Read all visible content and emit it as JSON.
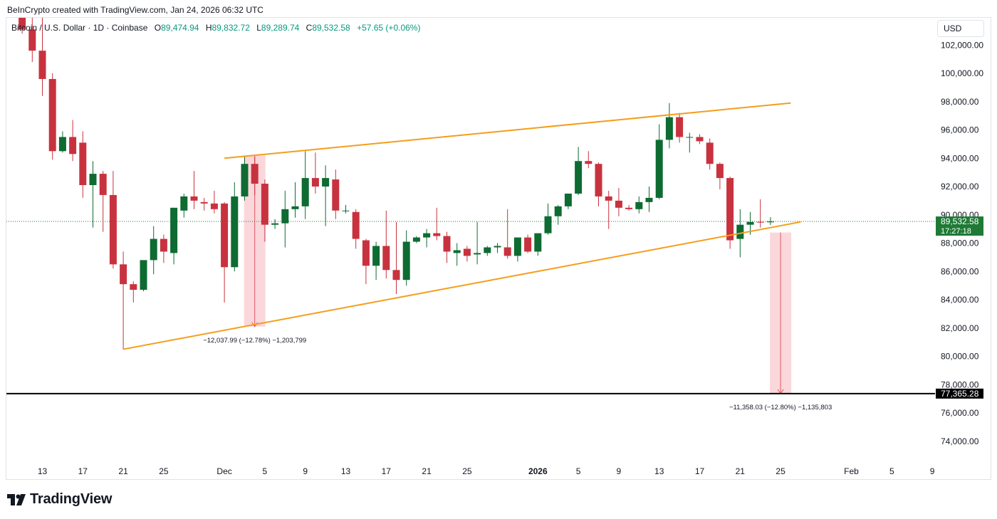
{
  "header": {
    "credit": "BeInCrypto created with TradingView.com, Jan 24, 2026 06:32 UTC"
  },
  "legend": {
    "symbol": "Bitcoin / U.S. Dollar · 1D · Coinbase",
    "open_label": "O",
    "open": "89,474.94",
    "high_label": "H",
    "high": "89,832.72",
    "low_label": "L",
    "low": "89,289.74",
    "close_label": "C",
    "close": "89,532.58",
    "change": "+57.65 (+0.06%)"
  },
  "currency_button": "USD",
  "logo_text": "TradingView",
  "colors": {
    "up": "#0e6b32",
    "down": "#c8323f",
    "trendline": "#f59d1b",
    "measure_fill": "#f8c9cf",
    "measure_line": "#e25563",
    "support_line": "#000000",
    "price_tag": "#1f7a36"
  },
  "chart_data": {
    "type": "candlestick",
    "title": "",
    "xlabel": "",
    "ylabel": "",
    "ylim": [
      72500,
      104500
    ],
    "grid": false,
    "y_ticks": [
      "102,000.00",
      "100,000.00",
      "98,000.00",
      "96,000.00",
      "94,000.00",
      "92,000.00",
      "90,000.00",
      "88,000.00",
      "86,000.00",
      "84,000.00",
      "82,000.00",
      "80,000.00",
      "78,000.00",
      "76,000.00",
      "74,000.00"
    ],
    "y_tick_values": [
      102000,
      100000,
      98000,
      96000,
      94000,
      92000,
      90000,
      88000,
      86000,
      84000,
      82000,
      80000,
      78000,
      76000,
      74000
    ],
    "x_ticks": [
      {
        "label": "13",
        "date": "2025-11-13"
      },
      {
        "label": "17",
        "date": "2025-11-17"
      },
      {
        "label": "21",
        "date": "2025-11-21"
      },
      {
        "label": "25",
        "date": "2025-11-25"
      },
      {
        "label": "Dec",
        "date": "2025-12-01"
      },
      {
        "label": "5",
        "date": "2025-12-05"
      },
      {
        "label": "9",
        "date": "2025-12-09"
      },
      {
        "label": "13",
        "date": "2025-12-13"
      },
      {
        "label": "17",
        "date": "2025-12-17"
      },
      {
        "label": "21",
        "date": "2025-12-21"
      },
      {
        "label": "25",
        "date": "2025-12-25"
      },
      {
        "label": "2026",
        "date": "2026-01-01",
        "bold": true
      },
      {
        "label": "5",
        "date": "2026-01-05"
      },
      {
        "label": "9",
        "date": "2026-01-09"
      },
      {
        "label": "13",
        "date": "2026-01-13"
      },
      {
        "label": "17",
        "date": "2026-01-17"
      },
      {
        "label": "21",
        "date": "2026-01-21"
      },
      {
        "label": "25",
        "date": "2026-01-25"
      },
      {
        "label": "Feb",
        "date": "2026-02-01"
      },
      {
        "label": "5",
        "date": "2026-02-05"
      },
      {
        "label": "9",
        "date": "2026-02-09"
      }
    ],
    "candles": [
      {
        "date": "2025-11-11",
        "o": 105000,
        "h": 105500,
        "l": 102800,
        "c": 103100
      },
      {
        "date": "2025-11-12",
        "o": 103100,
        "h": 105000,
        "l": 100800,
        "c": 101600
      },
      {
        "date": "2025-11-13",
        "o": 101600,
        "h": 104300,
        "l": 98400,
        "c": 99600
      },
      {
        "date": "2025-11-14",
        "o": 99600,
        "h": 100000,
        "l": 93900,
        "c": 94500
      },
      {
        "date": "2025-11-15",
        "o": 94500,
        "h": 95900,
        "l": 94400,
        "c": 95500
      },
      {
        "date": "2025-11-16",
        "o": 95500,
        "h": 96700,
        "l": 93800,
        "c": 94300
      },
      {
        "date": "2025-11-17",
        "o": 95100,
        "h": 95900,
        "l": 91200,
        "c": 92100
      },
      {
        "date": "2025-11-18",
        "o": 92100,
        "h": 93800,
        "l": 89100,
        "c": 92900
      },
      {
        "date": "2025-11-19",
        "o": 92900,
        "h": 93100,
        "l": 88800,
        "c": 91400
      },
      {
        "date": "2025-11-20",
        "o": 91400,
        "h": 93100,
        "l": 86200,
        "c": 86500
      },
      {
        "date": "2025-11-21",
        "o": 86500,
        "h": 87400,
        "l": 80500,
        "c": 85100
      },
      {
        "date": "2025-11-22",
        "o": 85100,
        "h": 85300,
        "l": 83800,
        "c": 84700
      },
      {
        "date": "2025-11-23",
        "o": 84700,
        "h": 86600,
        "l": 84600,
        "c": 86800
      },
      {
        "date": "2025-11-24",
        "o": 86800,
        "h": 89200,
        "l": 85800,
        "c": 88300
      },
      {
        "date": "2025-11-25",
        "o": 88300,
        "h": 88600,
        "l": 86600,
        "c": 87400
      },
      {
        "date": "2025-11-26",
        "o": 87300,
        "h": 90500,
        "l": 86500,
        "c": 90500
      },
      {
        "date": "2025-11-27",
        "o": 90300,
        "h": 91500,
        "l": 89800,
        "c": 91300
      },
      {
        "date": "2025-11-28",
        "o": 91300,
        "h": 93100,
        "l": 90400,
        "c": 91000
      },
      {
        "date": "2025-11-29",
        "o": 90900,
        "h": 91200,
        "l": 90300,
        "c": 90800
      },
      {
        "date": "2025-11-30",
        "o": 90800,
        "h": 91700,
        "l": 90100,
        "c": 90400
      },
      {
        "date": "2025-12-01",
        "o": 90800,
        "h": 90900,
        "l": 83800,
        "c": 86300
      },
      {
        "date": "2025-12-02",
        "o": 86300,
        "h": 92300,
        "l": 86000,
        "c": 91300
      },
      {
        "date": "2025-12-03",
        "o": 91300,
        "h": 94100,
        "l": 91000,
        "c": 93600
      },
      {
        "date": "2025-12-04",
        "o": 93600,
        "h": 94100,
        "l": 91400,
        "c": 92200
      },
      {
        "date": "2025-12-05",
        "o": 92200,
        "h": 92500,
        "l": 88100,
        "c": 89300
      },
      {
        "date": "2025-12-06",
        "o": 89300,
        "h": 89700,
        "l": 89000,
        "c": 89400
      },
      {
        "date": "2025-12-07",
        "o": 89400,
        "h": 91700,
        "l": 87700,
        "c": 90400
      },
      {
        "date": "2025-12-08",
        "o": 90400,
        "h": 92300,
        "l": 89800,
        "c": 90600
      },
      {
        "date": "2025-12-09",
        "o": 90600,
        "h": 94500,
        "l": 89700,
        "c": 92600
      },
      {
        "date": "2025-12-10",
        "o": 92600,
        "h": 94400,
        "l": 91500,
        "c": 92000
      },
      {
        "date": "2025-12-11",
        "o": 92000,
        "h": 93500,
        "l": 89200,
        "c": 92600
      },
      {
        "date": "2025-12-12",
        "o": 92500,
        "h": 93200,
        "l": 89700,
        "c": 90300
      },
      {
        "date": "2025-12-13",
        "o": 90300,
        "h": 90700,
        "l": 90100,
        "c": 90300
      },
      {
        "date": "2025-12-14",
        "o": 90200,
        "h": 90400,
        "l": 87600,
        "c": 88300
      },
      {
        "date": "2025-12-15",
        "o": 88200,
        "h": 88300,
        "l": 85100,
        "c": 86400
      },
      {
        "date": "2025-12-16",
        "o": 86400,
        "h": 88100,
        "l": 85400,
        "c": 87800
      },
      {
        "date": "2025-12-17",
        "o": 87800,
        "h": 90300,
        "l": 85500,
        "c": 86100
      },
      {
        "date": "2025-12-18",
        "o": 86100,
        "h": 89500,
        "l": 84400,
        "c": 85400
      },
      {
        "date": "2025-12-19",
        "o": 85400,
        "h": 88900,
        "l": 85000,
        "c": 88100
      },
      {
        "date": "2025-12-20",
        "o": 88100,
        "h": 88500,
        "l": 88000,
        "c": 88400
      },
      {
        "date": "2025-12-21",
        "o": 88400,
        "h": 89000,
        "l": 87700,
        "c": 88700
      },
      {
        "date": "2025-12-22",
        "o": 88700,
        "h": 90500,
        "l": 88200,
        "c": 88500
      },
      {
        "date": "2025-12-23",
        "o": 88500,
        "h": 88800,
        "l": 86600,
        "c": 87400
      },
      {
        "date": "2025-12-24",
        "o": 87300,
        "h": 88000,
        "l": 86400,
        "c": 87500
      },
      {
        "date": "2025-12-25",
        "o": 87600,
        "h": 87800,
        "l": 86700,
        "c": 87100
      },
      {
        "date": "2025-12-26",
        "o": 87200,
        "h": 89500,
        "l": 86500,
        "c": 87300
      },
      {
        "date": "2025-12-27",
        "o": 87300,
        "h": 87800,
        "l": 87100,
        "c": 87700
      },
      {
        "date": "2025-12-28",
        "o": 87700,
        "h": 88000,
        "l": 87300,
        "c": 87800
      },
      {
        "date": "2025-12-29",
        "o": 87700,
        "h": 90400,
        "l": 86900,
        "c": 87100
      },
      {
        "date": "2025-12-30",
        "o": 87100,
        "h": 88400,
        "l": 86700,
        "c": 88400
      },
      {
        "date": "2025-12-31",
        "o": 88400,
        "h": 88600,
        "l": 87300,
        "c": 87400
      },
      {
        "date": "2026-01-01",
        "o": 87400,
        "h": 88400,
        "l": 87100,
        "c": 88700
      },
      {
        "date": "2026-01-02",
        "o": 88700,
        "h": 90800,
        "l": 88600,
        "c": 89900
      },
      {
        "date": "2026-01-03",
        "o": 89900,
        "h": 90700,
        "l": 89300,
        "c": 90600
      },
      {
        "date": "2026-01-04",
        "o": 90600,
        "h": 91500,
        "l": 90400,
        "c": 91500
      },
      {
        "date": "2026-01-05",
        "o": 91500,
        "h": 94800,
        "l": 91400,
        "c": 93800
      },
      {
        "date": "2026-01-06",
        "o": 93800,
        "h": 94500,
        "l": 93300,
        "c": 93600
      },
      {
        "date": "2026-01-07",
        "o": 93600,
        "h": 93700,
        "l": 90600,
        "c": 91300
      },
      {
        "date": "2026-01-08",
        "o": 91300,
        "h": 91700,
        "l": 89000,
        "c": 91000
      },
      {
        "date": "2026-01-09",
        "o": 91000,
        "h": 91900,
        "l": 89900,
        "c": 90500
      },
      {
        "date": "2026-01-10",
        "o": 90500,
        "h": 90700,
        "l": 90300,
        "c": 90400
      },
      {
        "date": "2026-01-11",
        "o": 90400,
        "h": 91300,
        "l": 90100,
        "c": 90900
      },
      {
        "date": "2026-01-12",
        "o": 90900,
        "h": 92000,
        "l": 90200,
        "c": 91200
      },
      {
        "date": "2026-01-13",
        "o": 91200,
        "h": 96400,
        "l": 91100,
        "c": 95300
      },
      {
        "date": "2026-01-14",
        "o": 95300,
        "h": 97900,
        "l": 94700,
        "c": 96900
      },
      {
        "date": "2026-01-15",
        "o": 96900,
        "h": 97200,
        "l": 95100,
        "c": 95500
      },
      {
        "date": "2026-01-16",
        "o": 95500,
        "h": 95800,
        "l": 94400,
        "c": 95500
      },
      {
        "date": "2026-01-17",
        "o": 95500,
        "h": 95700,
        "l": 95000,
        "c": 95200
      },
      {
        "date": "2026-01-18",
        "o": 95100,
        "h": 95400,
        "l": 93200,
        "c": 93600
      },
      {
        "date": "2026-01-19",
        "o": 93600,
        "h": 93700,
        "l": 91800,
        "c": 92600
      },
      {
        "date": "2026-01-20",
        "o": 92600,
        "h": 92700,
        "l": 87600,
        "c": 88200
      },
      {
        "date": "2026-01-21",
        "o": 88300,
        "h": 90400,
        "l": 87000,
        "c": 89300
      },
      {
        "date": "2026-01-22",
        "o": 89300,
        "h": 90200,
        "l": 88600,
        "c": 89500
      },
      {
        "date": "2026-01-23",
        "o": 89500,
        "h": 91100,
        "l": 89100,
        "c": 89475
      },
      {
        "date": "2026-01-24",
        "o": 89474.94,
        "h": 89832.72,
        "l": 89289.74,
        "c": 89532.58
      }
    ],
    "trendlines": [
      {
        "name": "upper",
        "from": {
          "date": "2025-12-01",
          "price": 94000
        },
        "to": {
          "date": "2026-01-26",
          "price": 97900
        }
      },
      {
        "name": "lower",
        "from": {
          "date": "2025-11-21",
          "price": 80500
        },
        "to": {
          "date": "2026-01-27",
          "price": 89500
        }
      }
    ],
    "measurements": [
      {
        "date": "2025-12-04",
        "from_price": 94200,
        "to_price": 82100,
        "label": "−12,037.99 (−12.78%) −1,203,799"
      },
      {
        "date": "2026-01-25",
        "from_price": 88750,
        "to_price": 77365.28,
        "label": "−11,358.03 (−12.80%) −1,135,803"
      }
    ],
    "support_level": {
      "price": 77365.28,
      "label": "77,365.28"
    },
    "last_price": {
      "price": 89532.58,
      "label": "89,532.58",
      "countdown": "17:27:18"
    }
  }
}
